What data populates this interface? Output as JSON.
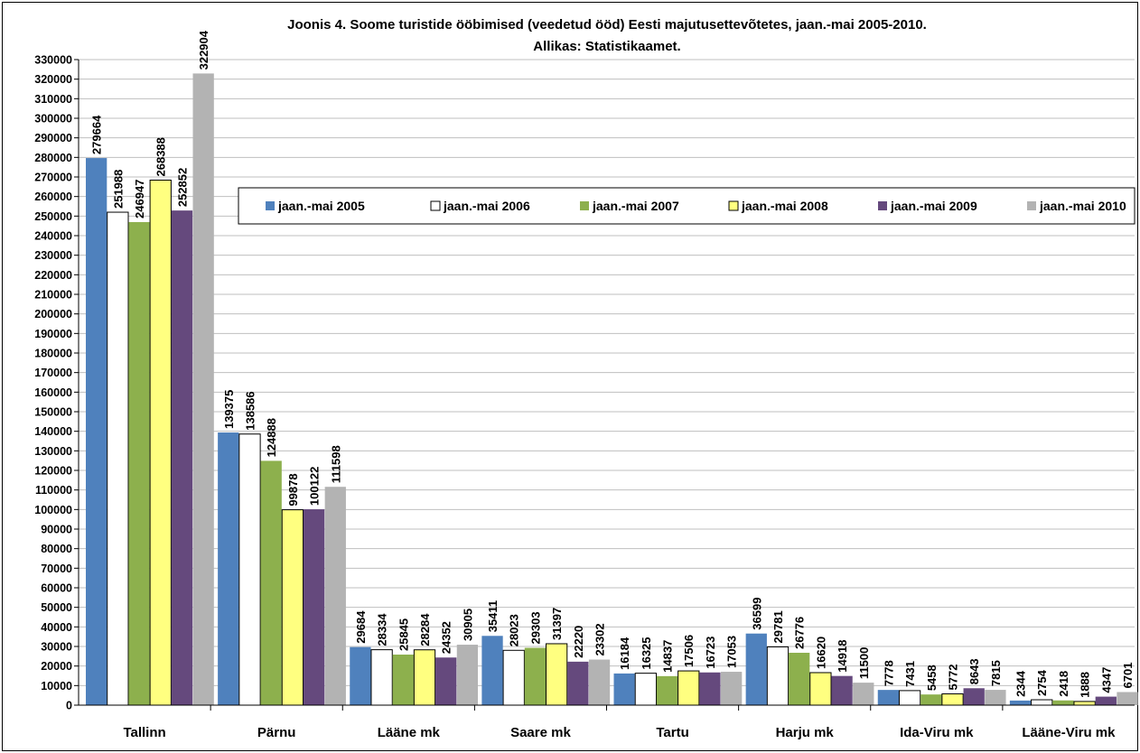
{
  "chart_data": {
    "type": "bar",
    "title": "Joonis 4. Soome turistide ööbimised (veedetud ööd) Eesti majutusettevõtetes, jaan.-mai  2005-2010.",
    "subtitle": "Allikas: Statistikaamet.",
    "xlabel": "",
    "ylabel": "",
    "ylim": [
      0,
      330000
    ],
    "ytick_step": 10000,
    "grid": true,
    "legend_position": "top-right",
    "categories": [
      "Tallinn",
      "Pärnu",
      "Lääne mk",
      "Saare mk",
      "Tartu",
      "Harju mk",
      "Ida-Viru mk",
      "Lääne-Viru mk"
    ],
    "series": [
      {
        "name": "jaan.-mai 2005",
        "color": "#4F81BD",
        "values": [
          279664,
          139375,
          29684,
          35411,
          16184,
          36599,
          7778,
          2344
        ]
      },
      {
        "name": "jaan.-mai 2006",
        "color": "#FFFFFF",
        "values": [
          251988,
          138586,
          28334,
          28023,
          16325,
          29781,
          7431,
          2754
        ]
      },
      {
        "name": "jaan.-mai 2007",
        "color": "#8DB04D",
        "values": [
          246947,
          124888,
          25845,
          29303,
          14837,
          26776,
          5458,
          2418
        ]
      },
      {
        "name": "jaan.-mai 2008",
        "color": "#FFFF80",
        "values": [
          268388,
          99878,
          28284,
          31397,
          17506,
          16620,
          5772,
          1888
        ]
      },
      {
        "name": "jaan.-mai 2009",
        "color": "#65497D",
        "values": [
          252852,
          100122,
          24352,
          22220,
          16723,
          14918,
          8643,
          4347
        ]
      },
      {
        "name": "jaan.-mai 2010",
        "color": "#B3B3B3",
        "values": [
          322904,
          111598,
          30905,
          23302,
          17053,
          11500,
          7815,
          6701
        ]
      }
    ]
  }
}
